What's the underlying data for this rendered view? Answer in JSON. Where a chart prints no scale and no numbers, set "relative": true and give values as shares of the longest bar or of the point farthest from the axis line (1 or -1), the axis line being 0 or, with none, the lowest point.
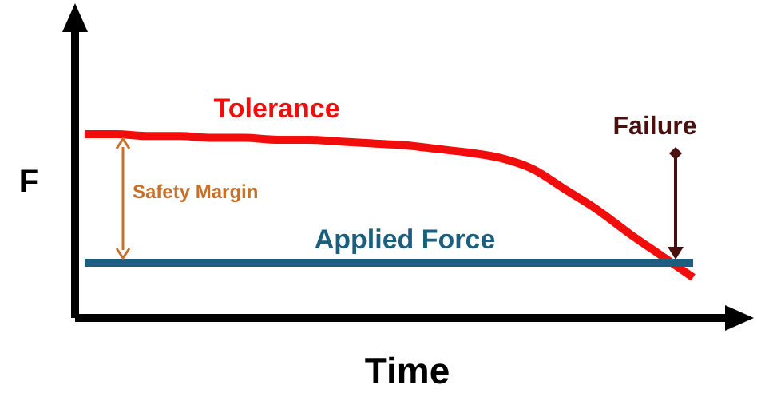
{
  "chart_data": {
    "type": "line",
    "relative": true,
    "xlabel": "Time",
    "ylabel": "F",
    "categories": [
      null,
      null,
      null,
      null,
      null,
      null,
      null,
      null,
      null,
      null,
      null,
      null,
      null,
      null,
      null,
      null,
      null,
      null,
      null,
      null
    ],
    "series": [
      {
        "name": "Tolerance",
        "color": "#f20d0d",
        "values": [
          1,
          1,
          0.99,
          0.99,
          0.98,
          0.98,
          0.97,
          0.97,
          0.96,
          0.95,
          0.94,
          0.92,
          0.9,
          0.87,
          0.81,
          0.7,
          0.59,
          0.46,
          0.34,
          0.22
        ]
      },
      {
        "name": "Applied Force",
        "color": "#1b5e7e",
        "values": [
          0.3,
          0.3,
          0.3,
          0.3,
          0.3,
          0.3,
          0.3,
          0.3,
          0.3,
          0.3,
          0.3,
          0.3,
          0.3,
          0.3,
          0.3,
          0.3,
          0.3,
          0.3,
          0.3,
          0.3
        ]
      }
    ],
    "annotations": [
      "Safety Margin",
      "Failure"
    ]
  }
}
